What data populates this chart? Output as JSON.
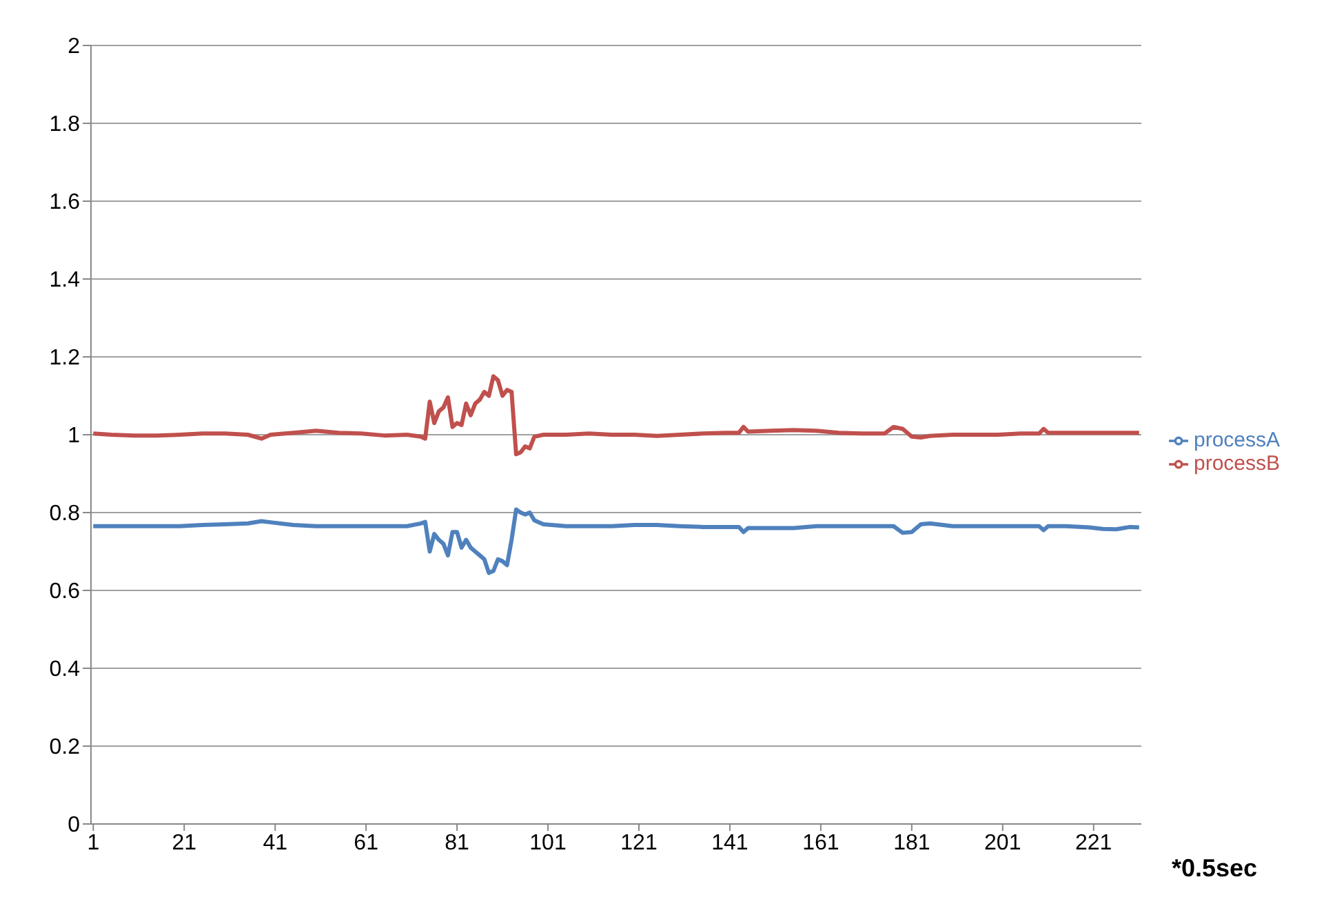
{
  "chart_data": {
    "type": "line",
    "xlabel": "*0.5sec",
    "x": [
      1,
      5,
      10,
      15,
      20,
      25,
      30,
      35,
      38,
      40,
      45,
      50,
      55,
      60,
      65,
      70,
      73,
      74,
      75,
      76,
      77,
      78,
      79,
      80,
      81,
      82,
      83,
      84,
      85,
      86,
      87,
      88,
      89,
      90,
      91,
      92,
      93,
      94,
      95,
      96,
      97,
      98,
      100,
      105,
      110,
      115,
      120,
      125,
      130,
      135,
      140,
      143,
      144,
      145,
      150,
      155,
      160,
      165,
      170,
      175,
      177,
      179,
      181,
      183,
      185,
      190,
      195,
      200,
      205,
      209,
      210,
      211,
      215,
      220,
      223,
      226,
      229,
      231
    ],
    "series": [
      {
        "name": "processA",
        "color": "#4f81bd",
        "values": [
          0.765,
          0.765,
          0.765,
          0.765,
          0.765,
          0.768,
          0.77,
          0.772,
          0.778,
          0.775,
          0.768,
          0.765,
          0.765,
          0.765,
          0.765,
          0.765,
          0.772,
          0.776,
          0.7,
          0.745,
          0.73,
          0.72,
          0.69,
          0.75,
          0.75,
          0.71,
          0.73,
          0.71,
          0.7,
          0.69,
          0.68,
          0.645,
          0.65,
          0.68,
          0.675,
          0.665,
          0.73,
          0.808,
          0.8,
          0.795,
          0.8,
          0.78,
          0.77,
          0.765,
          0.765,
          0.765,
          0.768,
          0.768,
          0.765,
          0.763,
          0.763,
          0.763,
          0.75,
          0.76,
          0.76,
          0.76,
          0.765,
          0.765,
          0.765,
          0.765,
          0.765,
          0.748,
          0.75,
          0.77,
          0.772,
          0.765,
          0.765,
          0.765,
          0.765,
          0.765,
          0.755,
          0.765,
          0.765,
          0.762,
          0.758,
          0.757,
          0.763,
          0.762
        ]
      },
      {
        "name": "processB",
        "color": "#c0504d",
        "values": [
          1.003,
          1.0,
          0.998,
          0.998,
          1.0,
          1.003,
          1.003,
          1.0,
          0.99,
          1.0,
          1.005,
          1.01,
          1.005,
          1.003,
          0.998,
          1.0,
          0.995,
          0.99,
          1.085,
          1.03,
          1.06,
          1.07,
          1.096,
          1.02,
          1.03,
          1.025,
          1.08,
          1.05,
          1.08,
          1.09,
          1.11,
          1.1,
          1.15,
          1.14,
          1.1,
          1.115,
          1.11,
          0.95,
          0.955,
          0.97,
          0.965,
          0.995,
          1.0,
          1.0,
          1.003,
          1.0,
          1.0,
          0.997,
          1.0,
          1.003,
          1.005,
          1.005,
          1.02,
          1.008,
          1.01,
          1.012,
          1.01,
          1.005,
          1.003,
          1.003,
          1.02,
          1.015,
          0.995,
          0.993,
          0.997,
          1.0,
          1.0,
          1.0,
          1.003,
          1.003,
          1.015,
          1.005,
          1.005,
          1.005,
          1.005,
          1.005,
          1.005,
          1.005
        ]
      }
    ],
    "xlim": [
      0.5,
      231.5
    ],
    "xticks": [
      1,
      21,
      41,
      61,
      81,
      101,
      121,
      141,
      161,
      181,
      201,
      221
    ],
    "ylim": [
      0,
      2
    ],
    "yticks": [
      0,
      0.2,
      0.4,
      0.6,
      0.8,
      1,
      1.2,
      1.4,
      1.6,
      1.8,
      2
    ],
    "grid": "y",
    "legend": "right",
    "marker": "none",
    "line_style": "solid"
  }
}
